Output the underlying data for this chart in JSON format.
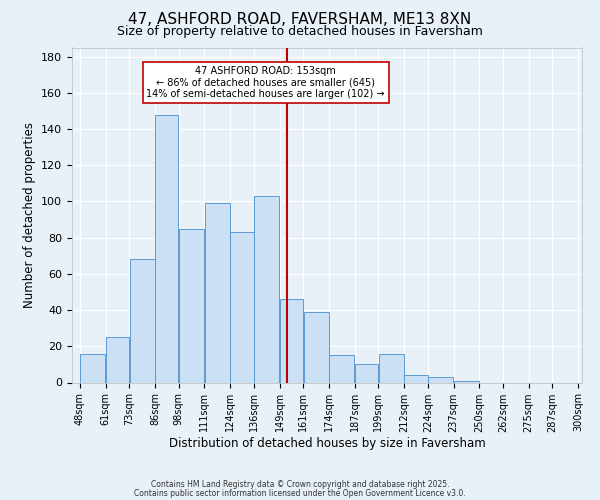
{
  "title": "47, ASHFORD ROAD, FAVERSHAM, ME13 8XN",
  "subtitle": "Size of property relative to detached houses in Faversham",
  "xlabel": "Distribution of detached houses by size in Faversham",
  "ylabel": "Number of detached properties",
  "bar_left_edges": [
    48,
    61,
    73,
    86,
    98,
    111,
    124,
    136,
    149,
    161,
    174,
    187,
    199,
    212,
    224,
    237,
    250,
    262,
    275,
    287
  ],
  "bar_widths": [
    13,
    12,
    13,
    12,
    13,
    13,
    12,
    13,
    12,
    13,
    13,
    12,
    13,
    12,
    13,
    13,
    12,
    13,
    12,
    13
  ],
  "bar_heights": [
    16,
    25,
    68,
    148,
    85,
    99,
    83,
    103,
    46,
    39,
    15,
    10,
    16,
    4,
    3,
    1,
    0,
    0,
    0,
    0
  ],
  "tick_labels": [
    "48sqm",
    "61sqm",
    "73sqm",
    "86sqm",
    "98sqm",
    "111sqm",
    "124sqm",
    "136sqm",
    "149sqm",
    "161sqm",
    "174sqm",
    "187sqm",
    "199sqm",
    "212sqm",
    "224sqm",
    "237sqm",
    "250sqm",
    "262sqm",
    "275sqm",
    "287sqm",
    "300sqm"
  ],
  "tick_positions": [
    48,
    61,
    73,
    86,
    98,
    111,
    124,
    136,
    149,
    161,
    174,
    187,
    199,
    212,
    224,
    237,
    250,
    262,
    275,
    287,
    300
  ],
  "bar_color": "#cce0f5",
  "bar_edge_color": "#5b9bd5",
  "vline_x": 153,
  "vline_color": "#c00000",
  "annotation_title": "47 ASHFORD ROAD: 153sqm",
  "annotation_line2": "← 86% of detached houses are smaller (645)",
  "annotation_line3": "14% of semi-detached houses are larger (102) →",
  "annotation_box_edge": "#c00000",
  "annotation_box_face": "#ffffff",
  "ylim": [
    0,
    185
  ],
  "background_color": "#e8f0f8",
  "grid_color": "#ffffff",
  "footer_line1": "Contains HM Land Registry data © Crown copyright and database right 2025.",
  "footer_line2": "Contains public sector information licensed under the Open Government Licence v3.0.",
  "title_fontsize": 11,
  "subtitle_fontsize": 9,
  "axis_label_fontsize": 8.5,
  "tick_fontsize": 7,
  "ytick_fontsize": 8,
  "annotation_fontsize": 7,
  "footer_fontsize": 5.5,
  "xlim_left": 44,
  "xlim_right": 302
}
